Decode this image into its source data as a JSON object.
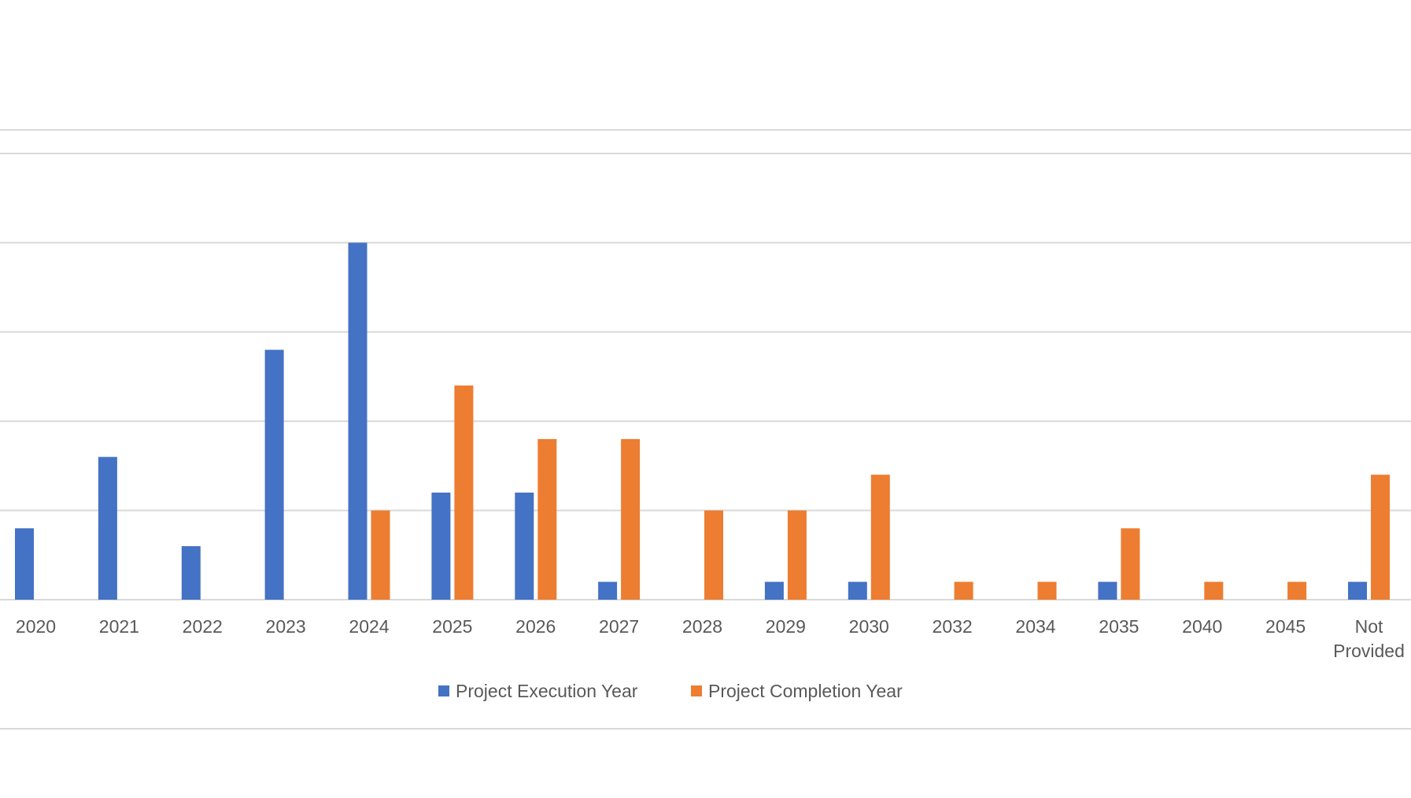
{
  "chart_data": {
    "type": "bar",
    "title": "",
    "xlabel": "",
    "ylabel": "",
    "categories": [
      "2020",
      "2021",
      "2022",
      "2023",
      "2024",
      "2025",
      "2026",
      "2027",
      "2028",
      "2029",
      "2030",
      "2032",
      "2034",
      "2035",
      "2040",
      "2045",
      "Not Provided"
    ],
    "series": [
      {
        "name": "Project Execution Year",
        "color": "#4472C4",
        "values": [
          4,
          8,
          3,
          14,
          20,
          6,
          6,
          1,
          0,
          1,
          1,
          0,
          0,
          1,
          0,
          0,
          1
        ]
      },
      {
        "name": "Project Completion Year",
        "color": "#ED7D31",
        "values": [
          0,
          0,
          0,
          0,
          5,
          12,
          9,
          9,
          5,
          5,
          7,
          1,
          1,
          4,
          1,
          1,
          7
        ]
      }
    ],
    "ylim": [
      0,
      25
    ],
    "yticks": [
      0,
      5,
      10,
      15,
      20,
      25
    ],
    "grid": true,
    "legend_position": "bottom",
    "tick_color": "#595959",
    "grid_color": "#D9D9D9"
  }
}
